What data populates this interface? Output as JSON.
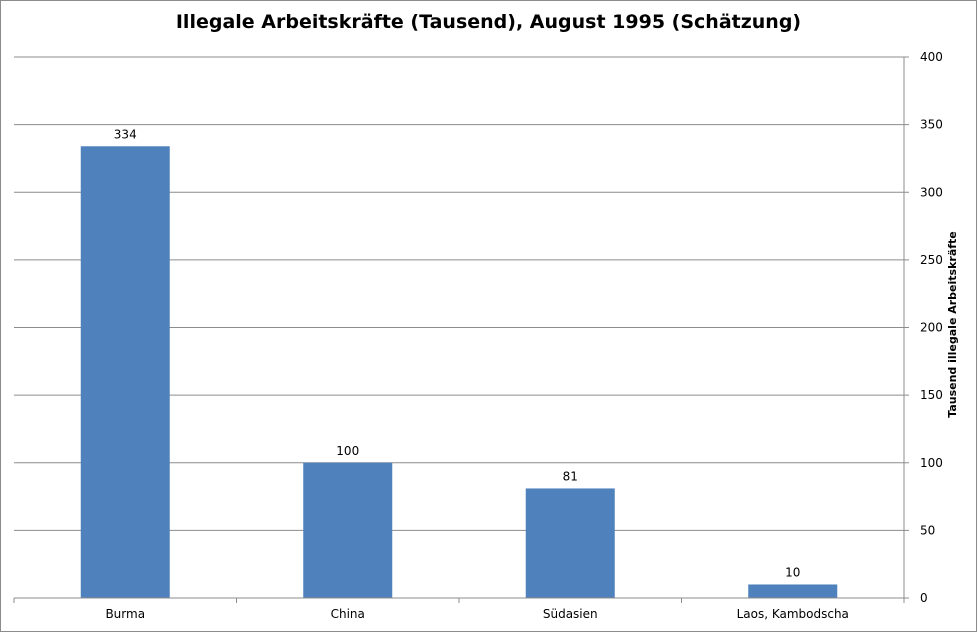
{
  "chart_data": {
    "type": "bar",
    "title": "Illegale Arbeitskräfte (Tausend), August 1995 (Schätzung)",
    "categories": [
      "Burma",
      "China",
      "Südasien",
      "Laos, Kambodscha"
    ],
    "values": [
      334,
      100,
      81,
      10
    ],
    "ylabel": "Tausend illegale Arbeitskräfte",
    "xlabel": "",
    "ylim": [
      0,
      400
    ],
    "yticks": [
      0,
      50,
      100,
      150,
      200,
      250,
      300,
      350,
      400
    ],
    "y_axis_position": "right",
    "grid": true,
    "legend": "none",
    "bar_color": "#4f81bd",
    "gridline_color": "#8c8c8c"
  }
}
